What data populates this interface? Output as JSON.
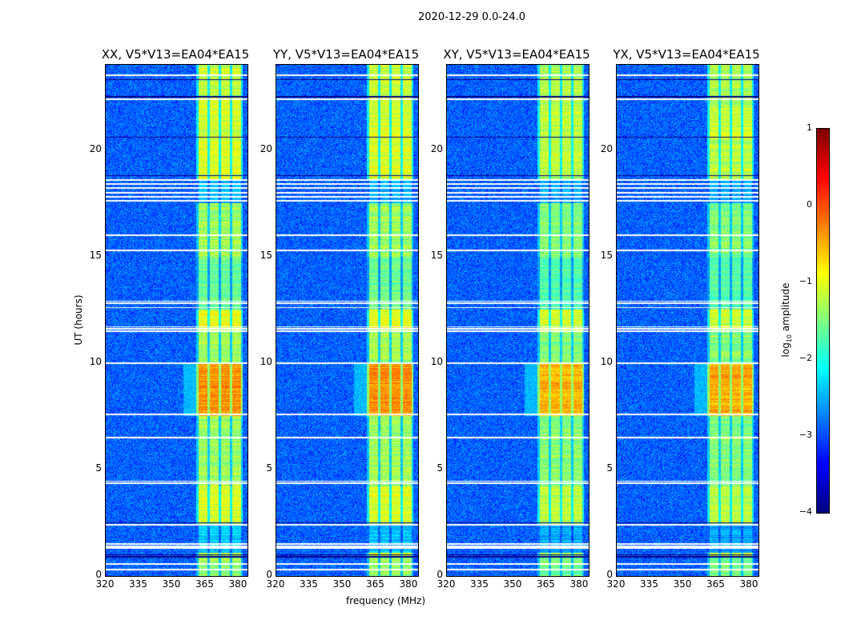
{
  "chart_data": {
    "type": "heatmap",
    "suptitle": "2020-12-29 0.0-24.0",
    "xlabel": "frequency (MHz)",
    "ylabel": "UT (hours)",
    "xlim": [
      320,
      384
    ],
    "ylim": [
      0,
      24
    ],
    "xticks": [
      "320",
      "335",
      "350",
      "365",
      "380"
    ],
    "xtick_values": [
      320,
      335,
      350,
      365,
      380
    ],
    "yticks": [
      "0",
      "5",
      "10",
      "15",
      "20"
    ],
    "ytick_values": [
      0,
      5,
      10,
      15,
      20
    ],
    "panels": [
      {
        "title": "XX, V5*V13=EA04*EA15"
      },
      {
        "title": "YY, V5*V13=EA04*EA15"
      },
      {
        "title": "XY, V5*V13=EA04*EA15"
      },
      {
        "title": "YX, V5*V13=EA04*EA15"
      }
    ],
    "colorbar": {
      "label_main": "log",
      "label_sub": "10",
      "label_rest": " amplitude",
      "range": [
        -4,
        1
      ],
      "ticks": [
        "1",
        "0",
        "−1",
        "−2",
        "−3",
        "−4"
      ],
      "tick_values": [
        1,
        0,
        -1,
        -2,
        -3,
        -4
      ],
      "colormap": "jet"
    },
    "background_log_amp": -3.1,
    "signal_subbands_mhz": [
      [
        362,
        366
      ],
      [
        367,
        371
      ],
      [
        372,
        376
      ],
      [
        377,
        381
      ]
    ],
    "signal_levels": [
      [
        0,
        0.9,
        -1.4
      ],
      [
        0.9,
        1.1,
        -1.0
      ],
      [
        1.1,
        2.4,
        -2.5
      ],
      [
        2.4,
        4.2,
        -1.0
      ],
      [
        4.2,
        7.5,
        -1.3
      ],
      [
        7.5,
        10.0,
        -0.2
      ],
      [
        10.0,
        11.5,
        -1.3
      ],
      [
        11.5,
        12.5,
        -0.9
      ],
      [
        12.5,
        15,
        -1.6
      ],
      [
        15,
        17.5,
        -1.3
      ],
      [
        17.5,
        18.6,
        -2.6
      ],
      [
        18.6,
        22,
        -1.0
      ],
      [
        22,
        24,
        -1.1
      ]
    ],
    "flagged_hours": [
      0.3,
      0.55,
      1.3,
      1.4,
      1.5,
      2.4,
      4.35,
      4.45,
      6.5,
      7.6,
      10.0,
      11.5,
      11.6,
      11.7,
      12.6,
      12.8,
      12.9,
      15.3,
      16.0,
      17.6,
      17.8,
      18.0,
      18.2,
      18.4,
      18.6,
      22.4,
      23.5
    ],
    "dropout_hours": [
      0.9,
      1.0,
      2.5,
      18.8,
      20.6,
      22.5,
      23.3
    ]
  }
}
